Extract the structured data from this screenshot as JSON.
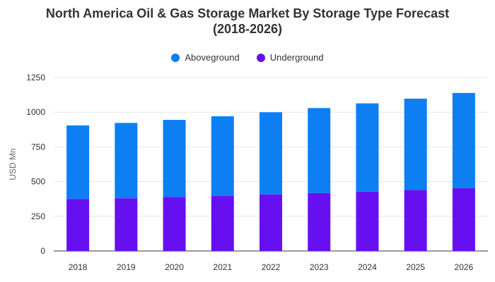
{
  "chart_data": {
    "type": "bar",
    "stacked": true,
    "title": "North America Oil & Gas Storage Market By Storage Type Forecast",
    "subtitle": "(2018-2026)",
    "xlabel": "",
    "ylabel": "USD Mn",
    "categories": [
      "2018",
      "2019",
      "2020",
      "2021",
      "2022",
      "2023",
      "2024",
      "2025",
      "2026"
    ],
    "series": [
      {
        "name": "Underground",
        "color": "#6610f2",
        "values": [
          375,
          380,
          390,
          398,
          408,
          418,
          428,
          440,
          453
        ]
      },
      {
        "name": "Aboveground",
        "color": "#0d7ff2",
        "values": [
          530,
          543,
          555,
          573,
          592,
          612,
          636,
          658,
          686
        ]
      }
    ],
    "ylim": [
      0,
      1250
    ],
    "yticks": [
      0,
      250,
      500,
      750,
      1000,
      1250
    ],
    "grid": true,
    "legend_position": "top-center"
  },
  "legend": [
    {
      "label": "Aboveground",
      "color": "#0d7ff2"
    },
    {
      "label": "Underground",
      "color": "#6610f2"
    }
  ]
}
